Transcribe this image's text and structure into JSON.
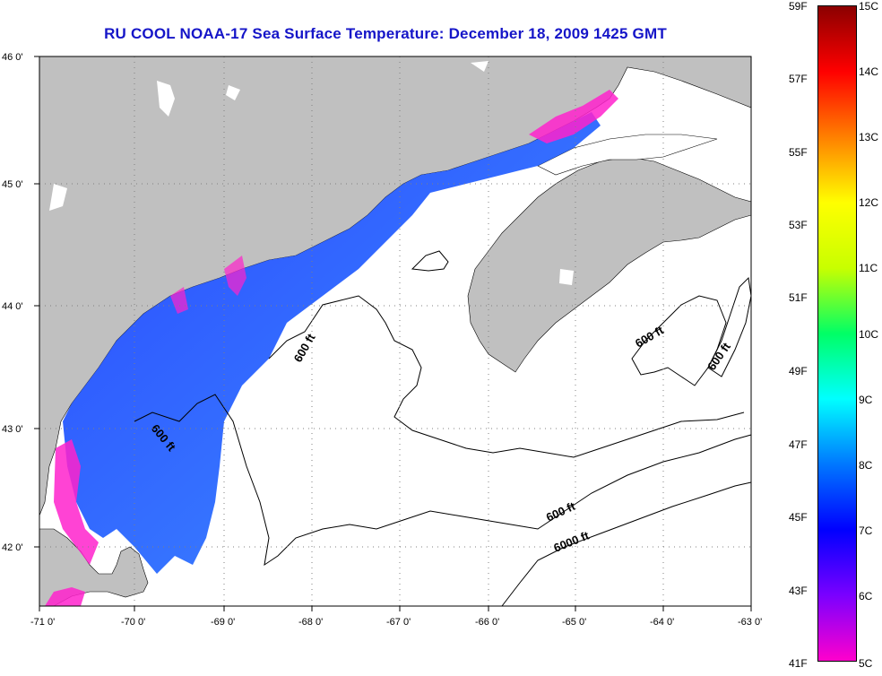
{
  "title": "RU COOL  NOAA-17  Sea Surface Temperature:  December 18, 2009 1425 GMT",
  "map": {
    "lon_ticks": [
      "-71 0'",
      "-70 0'",
      "-69 0'",
      "-68 0'",
      "-67 0'",
      "-66 0'",
      "-65 0'",
      "-64 0'",
      "-63 0'"
    ],
    "lat_ticks": [
      "46 0'",
      "45 0'",
      "44 0'",
      "43 0'",
      "42 0'"
    ],
    "lon_range": [
      -71,
      -63
    ],
    "lat_range": [
      41.5,
      46
    ],
    "land_color": "#c0c0c0",
    "water_color": "#ffffff",
    "contour_labels": [
      "600 ft",
      "600 ft",
      "600 ft",
      "600 ft",
      "600 ft",
      "6000 ft"
    ]
  },
  "colorbar": {
    "fahrenheit": [
      "59F",
      "57F",
      "55F",
      "53F",
      "51F",
      "49F",
      "47F",
      "45F",
      "43F",
      "41F"
    ],
    "celsius": [
      "15C",
      "14C",
      "13C",
      "12C",
      "11C",
      "10C",
      "9C",
      "8C",
      "7C",
      "6C",
      "5C"
    ],
    "colors": [
      "#ff00cc",
      "#7a00ff",
      "#0000ff",
      "#0077ff",
      "#00ffff",
      "#00ff66",
      "#c8ff00",
      "#ffff00",
      "#ff8000",
      "#ff0000",
      "#8b0000"
    ]
  }
}
